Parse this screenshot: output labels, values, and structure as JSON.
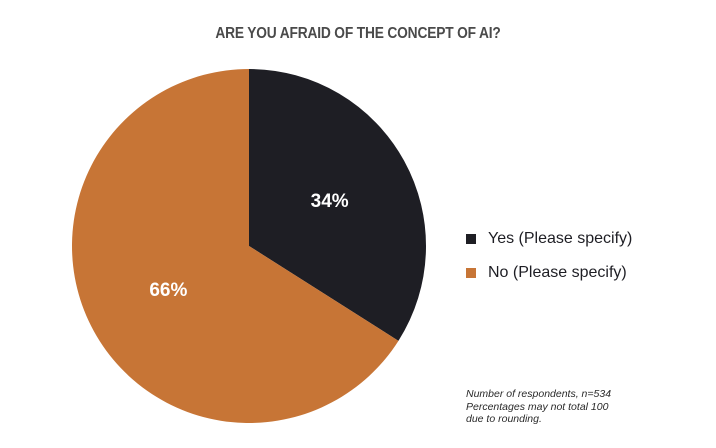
{
  "chart_data": {
    "type": "pie",
    "title": "ARE YOU AFRAID OF THE CONCEPT OF AI?",
    "categories": [
      "Yes (Please specify)",
      "No (Please specify)"
    ],
    "values": [
      34,
      66
    ],
    "data_labels": [
      "34%",
      "66%"
    ],
    "colors": [
      "#1e1e24",
      "#c77536"
    ],
    "start_angle_deg": 0,
    "direction": "clockwise",
    "legend_position": "right",
    "notes": [
      "Number of respondents, n=534",
      "Percentages may not total 100",
      "due to rounding."
    ]
  }
}
